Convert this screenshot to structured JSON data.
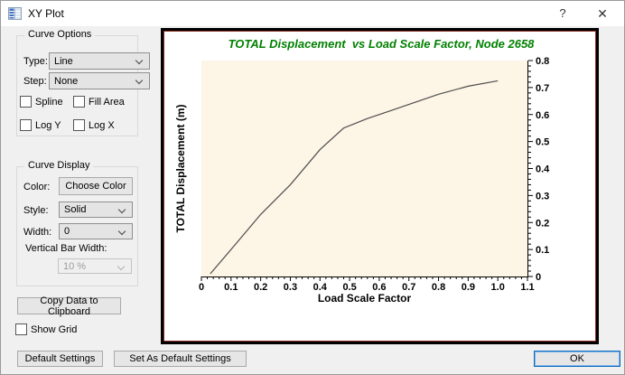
{
  "window": {
    "title": "XY Plot",
    "help_icon": "?",
    "close_icon": "✕"
  },
  "curve_options": {
    "legend": "Curve Options",
    "type_label": "Type:",
    "type_value": "Line",
    "step_label": "Step:",
    "step_value": "None",
    "spline_label": "Spline",
    "fill_area_label": "Fill Area",
    "log_y_label": "Log Y",
    "log_x_label": "Log X"
  },
  "curve_display": {
    "legend": "Curve Display",
    "color_label": "Color:",
    "choose_color_button": "Choose Color",
    "style_label": "Style:",
    "style_value": "Solid",
    "width_label": "Width:",
    "width_value": "0",
    "vertical_bar_width_label": "Vertical Bar Width:",
    "vertical_bar_width_value": "10 %"
  },
  "buttons": {
    "copy_data": "Copy Data to Clipboard",
    "default_settings": "Default Settings",
    "set_as_default": "Set As Default Settings",
    "ok": "OK"
  },
  "show_grid_label": "Show Grid",
  "chart_data": {
    "type": "line",
    "title": "TOTAL Displacement  vs Load Scale Factor, Node 2658",
    "xlabel": "Load Scale Factor",
    "ylabel": "TOTAL Displacement (m)",
    "xlim": [
      0,
      1.1
    ],
    "ylim": [
      0,
      0.8
    ],
    "x_major_step": 0.1,
    "y_major_step": 0.1,
    "x_minor_step": 0.02,
    "y_minor_step": 0.02,
    "grid": false,
    "legend_position": "none",
    "title_color": "#008000",
    "plot_bg": "#fdf5e6",
    "axis_color": "#000000",
    "line_color": "#4d4d4d",
    "series": [
      {
        "name": "TOTAL Displacement",
        "points": [
          [
            0.03,
            0.01
          ],
          [
            0.1,
            0.1
          ],
          [
            0.2,
            0.23
          ],
          [
            0.3,
            0.34
          ],
          [
            0.4,
            0.47
          ],
          [
            0.48,
            0.55
          ],
          [
            0.56,
            0.585
          ],
          [
            0.64,
            0.615
          ],
          [
            0.72,
            0.645
          ],
          [
            0.8,
            0.675
          ],
          [
            0.9,
            0.705
          ],
          [
            1.0,
            0.725
          ]
        ]
      }
    ]
  }
}
